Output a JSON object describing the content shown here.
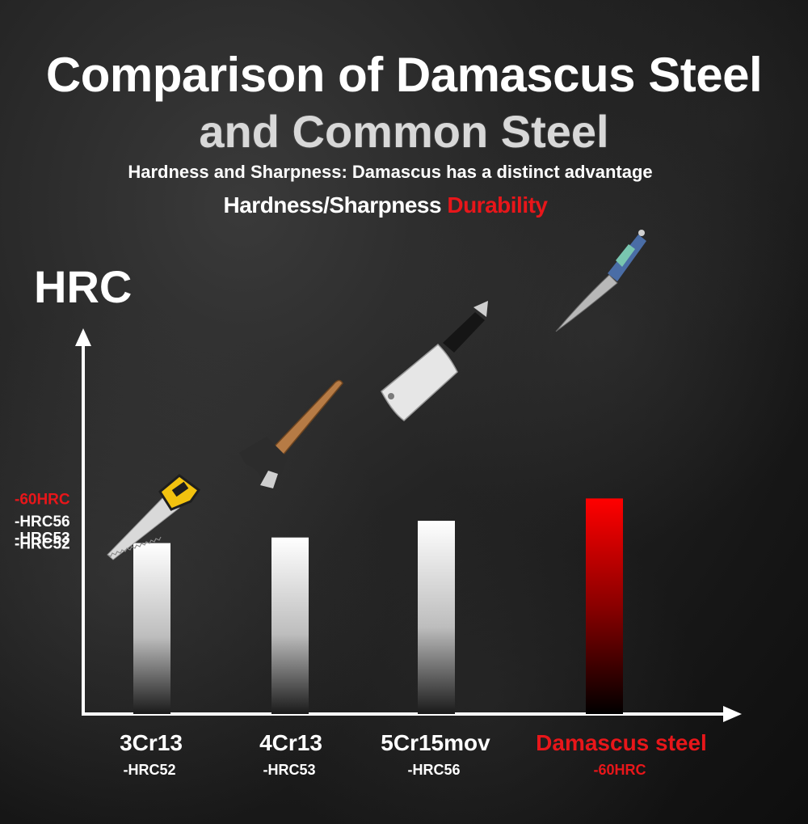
{
  "header": {
    "title_line1": "Comparison of Damascus Steel",
    "title_line2": "and Common Steel",
    "subtitle": "Hardness and Sharpness: Damascus has a distinct advantage",
    "tagline_white": "Hardness/Sharpness",
    "tagline_red": "Durability"
  },
  "colors": {
    "accent_red": "#e8161a",
    "bar_white": "#ffffff"
  },
  "chart_data": {
    "type": "bar",
    "ylabel": "HRC",
    "y_ticks": [
      "-HRC52",
      "-HRC53",
      "-HRC56",
      "-60HRC"
    ],
    "y_tick_values": [
      52,
      53,
      56,
      60
    ],
    "categories": [
      "3Cr13",
      "4Cr13",
      "5Cr15mov",
      "Damascus steel"
    ],
    "value_labels": [
      "-HRC52",
      "-HRC53",
      "-HRC56",
      "-60HRC"
    ],
    "values": [
      52,
      53,
      56,
      60
    ],
    "highlight_index": 3,
    "icons": [
      "saw-icon",
      "axe-icon",
      "cleaver-icon",
      "damascus-knife-icon"
    ]
  }
}
